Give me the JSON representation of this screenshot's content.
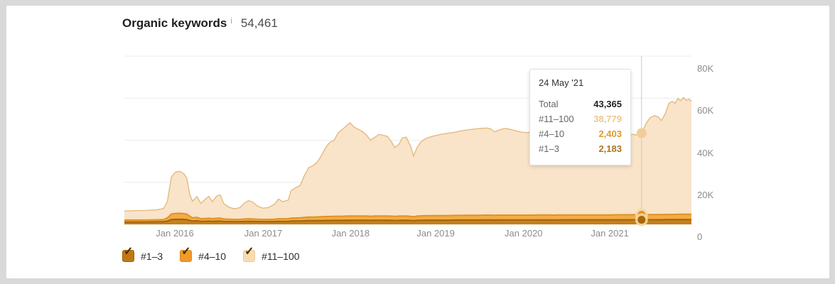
{
  "header": {
    "title": "Organic keywords",
    "value": "54,461"
  },
  "glyphs": {
    "info": "i",
    "check": "✓"
  },
  "tooltip": {
    "date": "24 May '21",
    "rows": [
      {
        "label": "Total",
        "value": "43,365",
        "color": "#1f1f1f"
      },
      {
        "label": "#11–100",
        "value": "38,779",
        "color": "#eac88d"
      },
      {
        "label": "#4–10",
        "value": "2,403",
        "color": "#dd9a30"
      },
      {
        "label": "#1–3",
        "value": "2,183",
        "color": "#ad761c"
      }
    ]
  },
  "legend": [
    {
      "label": "#1–3",
      "checked": true,
      "box_color": "#c07817",
      "border_color": "#9d6206"
    },
    {
      "label": "#4–10",
      "checked": true,
      "box_color": "#f09a2c",
      "border_color": "#da881c"
    },
    {
      "label": "#11–100",
      "checked": true,
      "box_color": "#f7dcb2",
      "border_color": "#ecca96"
    }
  ],
  "chart_data": {
    "type": "area",
    "stacked": true,
    "title": "Organic keywords over time",
    "ylim": [
      0,
      80000
    ],
    "grid_color": "#ececec",
    "crosshair_color": "#c9c9c9",
    "legend_position": "bottom",
    "y_ticks": [
      {
        "label": "80K",
        "v": 80000
      },
      {
        "label": "60K",
        "v": 60000
      },
      {
        "label": "40K",
        "v": 40000
      },
      {
        "label": "20K",
        "v": 20000
      },
      {
        "label": "0",
        "v": 0
      }
    ],
    "x_ticks": [
      {
        "label": "Jan 2016",
        "t": 0.089
      },
      {
        "label": "Jan 2017",
        "t": 0.245
      },
      {
        "label": "Jan 2018",
        "t": 0.399
      },
      {
        "label": "Jan 2019",
        "t": 0.549
      },
      {
        "label": "Jan 2020",
        "t": 0.704
      },
      {
        "label": "Jan 2021",
        "t": 0.856
      }
    ],
    "x": [
      0.0,
      0.019,
      0.038,
      0.056,
      0.069,
      0.076,
      0.083,
      0.09,
      0.098,
      0.105,
      0.11,
      0.115,
      0.12,
      0.128,
      0.135,
      0.143,
      0.149,
      0.155,
      0.163,
      0.169,
      0.175,
      0.184,
      0.194,
      0.204,
      0.212,
      0.219,
      0.227,
      0.234,
      0.244,
      0.254,
      0.264,
      0.272,
      0.279,
      0.289,
      0.294,
      0.302,
      0.31,
      0.317,
      0.325,
      0.332,
      0.34,
      0.347,
      0.355,
      0.362,
      0.37,
      0.377,
      0.385,
      0.392,
      0.398,
      0.405,
      0.412,
      0.42,
      0.427,
      0.434,
      0.441,
      0.449,
      0.456,
      0.464,
      0.471,
      0.477,
      0.484,
      0.49,
      0.497,
      0.505,
      0.51,
      0.516,
      0.523,
      0.533,
      0.545,
      0.558,
      0.57,
      0.583,
      0.595,
      0.608,
      0.623,
      0.638,
      0.645,
      0.653,
      0.66,
      0.67,
      0.68,
      0.69,
      0.7,
      0.711,
      0.721,
      0.731,
      0.738,
      0.748,
      0.758,
      0.768,
      0.778,
      0.788,
      0.798,
      0.808,
      0.818,
      0.828,
      0.838,
      0.848,
      0.858,
      0.868,
      0.878,
      0.888,
      0.896,
      0.903,
      0.912,
      0.92,
      0.927,
      0.935,
      0.942,
      0.947,
      0.954,
      0.96,
      0.966,
      0.971,
      0.976,
      0.981,
      0.986,
      0.991,
      0.996,
      1.0
    ],
    "series": [
      {
        "id": "top3",
        "name": "#1–3",
        "fill": "#c5801c",
        "stroke": "#a36407",
        "values": [
          1150,
          1150,
          1150,
          1200,
          1250,
          1600,
          2300,
          2400,
          2400,
          2350,
          2300,
          1900,
          1600,
          1700,
          1450,
          1500,
          1550,
          1450,
          1550,
          1550,
          1400,
          1350,
          1300,
          1300,
          1400,
          1450,
          1400,
          1350,
          1300,
          1300,
          1350,
          1450,
          1400,
          1450,
          1550,
          1600,
          1600,
          1700,
          1750,
          1750,
          1800,
          1800,
          1850,
          1850,
          1900,
          1900,
          1900,
          1950,
          1950,
          1950,
          1950,
          1950,
          1950,
          1900,
          1950,
          1950,
          1950,
          1950,
          1900,
          1850,
          1900,
          1950,
          1950,
          1850,
          1750,
          1900,
          1950,
          2000,
          2000,
          2000,
          2000,
          2050,
          2050,
          2050,
          2050,
          2100,
          2100,
          2050,
          2100,
          2100,
          2100,
          2100,
          2100,
          2100,
          2100,
          2100,
          2100,
          2100,
          2100,
          2100,
          2150,
          2150,
          2150,
          2150,
          2150,
          2150,
          2150,
          2150,
          2150,
          2150,
          2150,
          2150,
          2180,
          2180,
          2183,
          2200,
          2200,
          2200,
          2200,
          2200,
          2250,
          2250,
          2250,
          2250,
          2280,
          2280,
          2280,
          2280,
          2300,
          2300
        ]
      },
      {
        "id": "top4_10",
        "name": "#4–10",
        "fill": "#f3ac46",
        "stroke": "#e09226",
        "values": [
          900,
          900,
          900,
          950,
          1000,
          1500,
          2600,
          2800,
          2850,
          2750,
          2600,
          2000,
          1500,
          1600,
          1250,
          1300,
          1350,
          1250,
          1350,
          1400,
          1200,
          1100,
          1050,
          1050,
          1150,
          1200,
          1150,
          1100,
          1050,
          1050,
          1100,
          1250,
          1200,
          1250,
          1400,
          1450,
          1500,
          1600,
          1700,
          1700,
          1750,
          1800,
          1850,
          1900,
          1900,
          1950,
          1950,
          2000,
          2000,
          2000,
          2000,
          2000,
          2000,
          1950,
          2000,
          2050,
          2050,
          2050,
          2000,
          1950,
          2000,
          2050,
          2050,
          1950,
          1850,
          2000,
          2100,
          2150,
          2150,
          2200,
          2200,
          2200,
          2250,
          2250,
          2250,
          2300,
          2300,
          2250,
          2300,
          2300,
          2300,
          2300,
          2300,
          2300,
          2300,
          2350,
          2350,
          2350,
          2300,
          2350,
          2350,
          2350,
          2350,
          2350,
          2350,
          2350,
          2350,
          2350,
          2350,
          2400,
          2400,
          2400,
          2400,
          2400,
          2403,
          2420,
          2430,
          2430,
          2430,
          2430,
          2450,
          2450,
          2480,
          2480,
          2500,
          2500,
          2500,
          2500,
          2500,
          2500
        ]
      },
      {
        "id": "top11_100",
        "name": "#11–100",
        "fill": "#f9e4c9",
        "stroke": "#e3ba80",
        "values": [
          4250,
          4450,
          4550,
          4750,
          5250,
          7900,
          17600,
          19600,
          19950,
          18900,
          17100,
          10600,
          7900,
          9900,
          7300,
          9200,
          10400,
          8100,
          10600,
          11050,
          7400,
          5750,
          5050,
          5650,
          7650,
          8650,
          7950,
          6350,
          5350,
          5650,
          7050,
          9300,
          8200,
          8800,
          13050,
          14450,
          15400,
          19700,
          23550,
          24350,
          25950,
          28900,
          32800,
          35250,
          36200,
          39650,
          41350,
          43050,
          44350,
          42250,
          41350,
          40050,
          38550,
          36150,
          37250,
          38800,
          38400,
          37800,
          35300,
          32700,
          34100,
          37000,
          37500,
          33200,
          28900,
          32600,
          35250,
          36850,
          37850,
          38600,
          39100,
          39550,
          40200,
          40700,
          41200,
          41400,
          41100,
          39700,
          40400,
          41200,
          40800,
          40100,
          39400,
          39200,
          39900,
          40850,
          41350,
          40550,
          39800,
          40350,
          41100,
          40700,
          40100,
          39500,
          38900,
          38300,
          37700,
          37300,
          36500,
          36950,
          37250,
          37750,
          38220,
          37920,
          38779,
          43380,
          46070,
          47070,
          46370,
          44670,
          48000,
          52800,
          53770,
          52770,
          55020,
          54020,
          55520,
          54220,
          54700,
          53700
        ]
      }
    ],
    "marker": {
      "t": 0.912,
      "date": "24 May '21",
      "total": 43365,
      "values": [
        2183,
        2403,
        38779
      ],
      "colors": {
        "total_dot": "#f2cd98",
        "halo": "rgba(246,216,160,0.85)",
        "mid_dot": "#e2932b",
        "low_dot": "#a96708"
      }
    }
  }
}
